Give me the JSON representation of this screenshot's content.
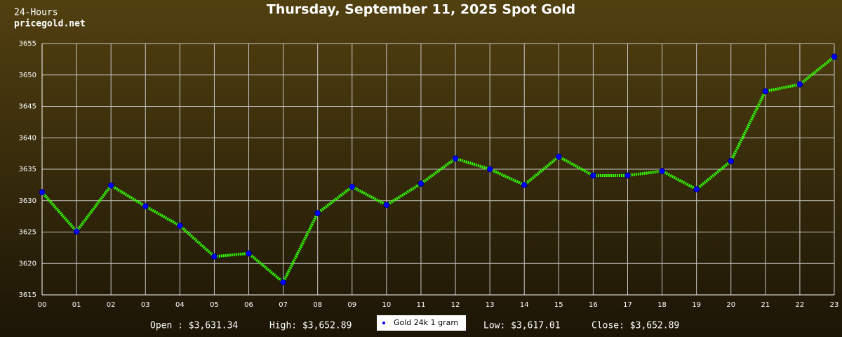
{
  "chart_data": {
    "type": "line",
    "title": "Thursday, September 11, 2025 Spot Gold",
    "subtitle": [
      "24-Hours",
      "pricegold.net"
    ],
    "categories": [
      "00",
      "01",
      "02",
      "03",
      "04",
      "05",
      "06",
      "07",
      "08",
      "09",
      "10",
      "11",
      "12",
      "13",
      "14",
      "15",
      "16",
      "17",
      "18",
      "19",
      "20",
      "21",
      "22",
      "23"
    ],
    "series": [
      {
        "name": "Gold 24k 1 gram",
        "color": "#33ff00",
        "marker_color": "#0000ff",
        "values": [
          3631.34,
          3625.1,
          3632.4,
          3629.1,
          3626.0,
          3621.1,
          3621.6,
          3617.01,
          3628.0,
          3632.2,
          3629.3,
          3632.7,
          3636.7,
          3635.0,
          3632.5,
          3637.0,
          3634.0,
          3634.0,
          3634.7,
          3631.8,
          3636.3,
          3647.4,
          3648.5,
          3652.89
        ]
      }
    ],
    "ylim": [
      3615,
      3655
    ],
    "yticks": [
      3615,
      3620,
      3625,
      3630,
      3635,
      3640,
      3645,
      3650,
      3655
    ],
    "grid": true,
    "annotations": [
      "Open : $3,631.34",
      "High: $3,652.89",
      "Low: $3,617.01",
      "Close: $3,652.89"
    ]
  }
}
